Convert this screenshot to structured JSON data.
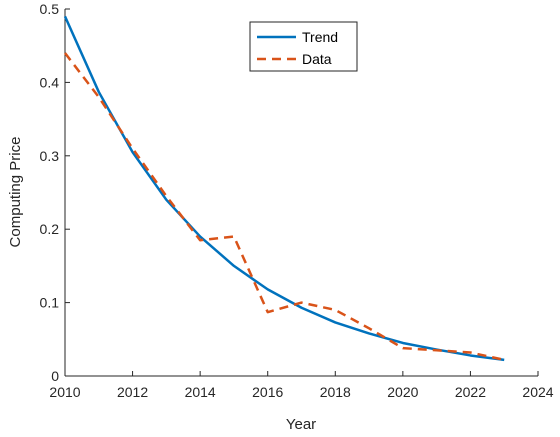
{
  "chart_data": {
    "type": "line",
    "title": "",
    "xlabel": "Year",
    "ylabel": "Computing Price",
    "xlim": [
      2010,
      2024
    ],
    "ylim": [
      0,
      0.5
    ],
    "x_ticks": [
      "2010",
      "2012",
      "2014",
      "2016",
      "2018",
      "2020",
      "2022",
      "2024"
    ],
    "y_ticks": [
      "0",
      "0.1",
      "0.2",
      "0.3",
      "0.4",
      "0.5"
    ],
    "grid": false,
    "legend_position": "top-center",
    "series": [
      {
        "name": "Trend",
        "style": "solid",
        "color": "#0072BD",
        "x": [
          2010,
          2011,
          2012,
          2013,
          2014,
          2015,
          2016,
          2017,
          2018,
          2019,
          2020,
          2021,
          2022,
          2023
        ],
        "values": [
          0.49,
          0.387,
          0.305,
          0.24,
          0.19,
          0.15,
          0.118,
          0.093,
          0.073,
          0.058,
          0.045,
          0.036,
          0.028,
          0.022
        ]
      },
      {
        "name": "Data",
        "style": "dashed",
        "color": "#D95319",
        "x": [
          2010,
          2011,
          2012,
          2013,
          2014,
          2015,
          2016,
          2017,
          2018,
          2019,
          2020,
          2021,
          2022,
          2023
        ],
        "values": [
          0.44,
          0.38,
          0.31,
          0.245,
          0.185,
          0.19,
          0.087,
          0.1,
          0.09,
          0.065,
          0.038,
          0.035,
          0.032,
          0.022
        ]
      }
    ]
  }
}
